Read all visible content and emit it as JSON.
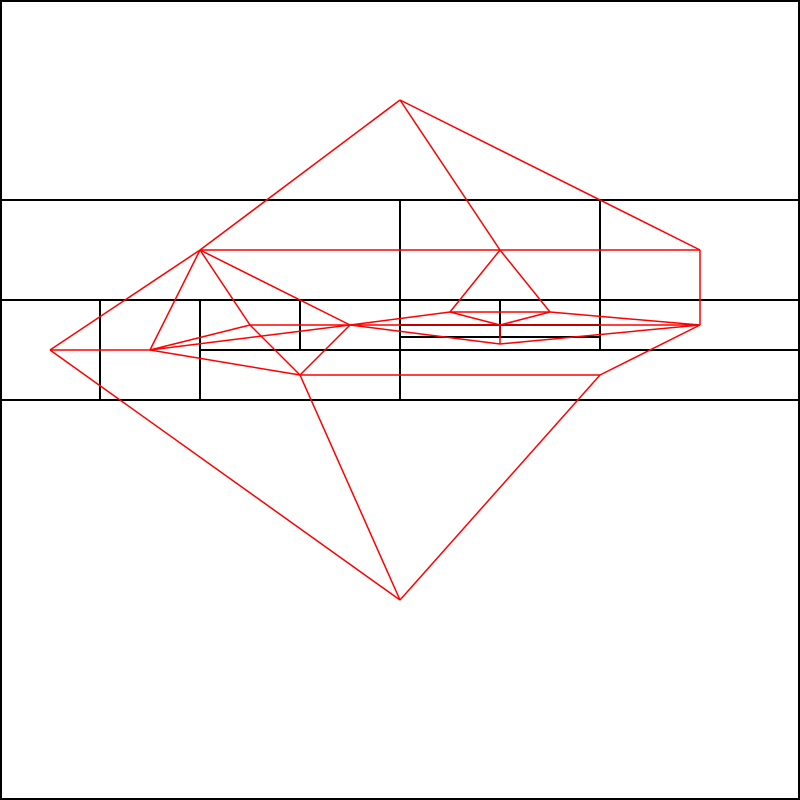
{
  "diagram": {
    "kind": "grid-subdivision-with-overlay-graph",
    "grid_color": "#000000",
    "graph_color": "#ff0000",
    "background": "#ffffff"
  }
}
